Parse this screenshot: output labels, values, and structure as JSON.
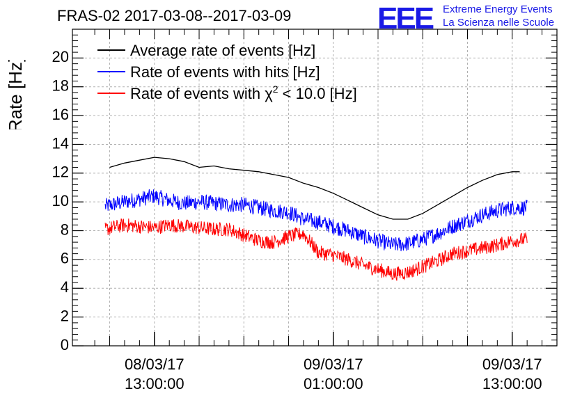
{
  "header": {
    "title": "FRAS-02 2017-03-08--2017-03-09",
    "logo_letters": "EEE",
    "logo_line1": "Extreme Energy Events",
    "logo_line2": "La Scienza nelle Scuole"
  },
  "colors": {
    "average": "#000000",
    "hits": "#0000ff",
    "chi2": "#ff0000",
    "logo": "#1a1ae6"
  },
  "chart_data": {
    "type": "line",
    "title": "FRAS-02 2017-03-08--2017-03-09",
    "ylabel": "Rate [Hz]",
    "xlabel": "",
    "ylim": [
      0,
      22
    ],
    "xlim_hours": [
      -5.5,
      27.0
    ],
    "x_unit": "hours since 08/03/17 13:00:00",
    "yticks": [
      0,
      2,
      4,
      6,
      8,
      10,
      12,
      14,
      16,
      18,
      20
    ],
    "xticks": [
      {
        "hours": 0,
        "line1": "08/03/17",
        "line2": "13:00:00"
      },
      {
        "hours": 12,
        "line1": "09/03/17",
        "line2": "01:00:00"
      },
      {
        "hours": 24,
        "line1": "09/03/17",
        "line2": "13:00:00"
      }
    ],
    "grid": true,
    "legend_position": "top-left",
    "series": [
      {
        "name": "Average rate of events [Hz]",
        "legend_main": "Average rate of events [Hz]",
        "color": "#000000",
        "noise": 0,
        "x": [
          -3,
          -2,
          -1,
          0,
          1,
          2,
          3,
          4,
          5,
          6,
          7,
          8,
          9,
          10,
          11,
          12,
          13,
          14,
          15,
          16,
          17,
          18,
          19,
          20,
          21,
          22,
          23,
          24,
          24.5
        ],
        "y": [
          12.4,
          12.7,
          12.9,
          13.1,
          13.0,
          12.8,
          12.4,
          12.5,
          12.3,
          12.2,
          12.1,
          11.9,
          11.7,
          11.3,
          11.0,
          10.6,
          10.1,
          9.6,
          9.1,
          8.8,
          8.8,
          9.2,
          9.8,
          10.4,
          11.0,
          11.5,
          11.9,
          12.1,
          12.1
        ]
      },
      {
        "name": "Rate of events with hits [Hz]",
        "legend_main": "Rate of events with hits [Hz]",
        "color": "#0000ff",
        "noise": 0.55,
        "x": [
          -3.3,
          -2,
          -1,
          0,
          1,
          2,
          3,
          4,
          5,
          6,
          7,
          8,
          9,
          10,
          11,
          12,
          13,
          14,
          15,
          16,
          17,
          18,
          19,
          20,
          21,
          22,
          23,
          24,
          25
        ],
        "y": [
          9.7,
          10.0,
          10.2,
          10.4,
          10.1,
          9.9,
          10.0,
          9.9,
          9.8,
          9.8,
          9.6,
          9.4,
          9.3,
          8.8,
          8.6,
          8.3,
          8.0,
          7.6,
          7.3,
          7.0,
          7.1,
          7.4,
          7.8,
          8.3,
          8.7,
          9.1,
          9.4,
          9.6,
          9.6
        ]
      },
      {
        "name": "Rate of events with χ² < 10.0 [Hz]",
        "legend_main": "Rate of events with χ",
        "legend_sup": "2",
        "legend_tail": " < 10.0 [Hz]",
        "color": "#ff0000",
        "noise": 0.5,
        "x": [
          -3.3,
          -2,
          -1,
          0,
          1,
          2,
          3,
          4,
          5,
          6,
          7,
          8,
          9,
          10,
          11,
          12,
          13,
          14,
          15,
          16,
          17,
          18,
          19,
          20,
          21,
          22,
          23,
          24,
          25
        ],
        "y": [
          8.1,
          8.4,
          8.3,
          8.2,
          8.4,
          8.3,
          8.2,
          8.1,
          8.1,
          7.7,
          7.3,
          7.2,
          7.6,
          7.8,
          6.5,
          6.3,
          6.0,
          5.6,
          5.3,
          5.0,
          5.1,
          5.5,
          5.9,
          6.4,
          6.6,
          6.8,
          7.0,
          7.3,
          7.4
        ]
      }
    ]
  }
}
